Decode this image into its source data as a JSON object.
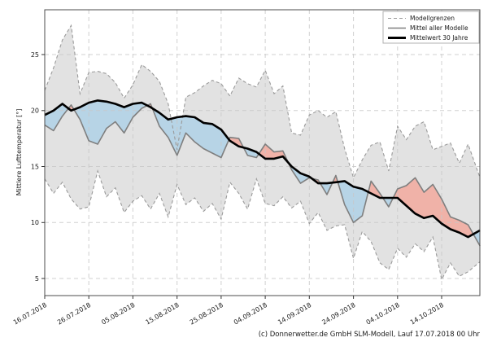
{
  "figure": {
    "background": "#ffffff",
    "caption": "(c) Donnerwetter.de GmbH SLM-Modell, Lauf 17.07.2018 00 Uhr"
  },
  "chart_data": {
    "type": "line",
    "title": "",
    "xlabel": "",
    "ylabel": "Mittlere Lufttemperatur [°]",
    "ylim": [
      3.5,
      29.0
    ],
    "yticks": [
      5,
      10,
      15,
      20,
      25
    ],
    "xtick_days": [
      0,
      10,
      20,
      30,
      40,
      50,
      60,
      70,
      80,
      90
    ],
    "xtick_labels": [
      "16.07.2018",
      "26.07.2018",
      "05.08.2018",
      "15.08.2018",
      "25.08.2018",
      "04.09.2018",
      "14.09.2018",
      "24.09.2018",
      "04.10.2018",
      "14.10.2018"
    ],
    "x_start_date": "16.07.2018",
    "grid": true,
    "x_days": [
      0,
      2,
      4,
      6,
      8,
      10,
      12,
      14,
      16,
      18,
      20,
      22,
      24,
      26,
      28,
      30,
      32,
      34,
      36,
      38,
      40,
      42,
      44,
      46,
      48,
      50,
      52,
      54,
      56,
      58,
      60,
      62,
      64,
      66,
      68,
      70,
      72,
      74,
      76,
      78,
      80,
      82,
      84,
      86,
      88,
      90,
      92,
      94,
      96,
      98.7
    ],
    "series": [
      {
        "name": "Modellgrenzen (obere Grenze)",
        "role": "upper_bound",
        "values": [
          21.8,
          23.8,
          26.3,
          27.6,
          21.5,
          23.4,
          23.5,
          23.3,
          22.5,
          21.1,
          22.3,
          24.1,
          23.5,
          22.6,
          20.6,
          16.5,
          21.2,
          21.6,
          22.2,
          22.7,
          22.4,
          21.3,
          22.9,
          22.4,
          22.1,
          23.6,
          21.5,
          22.2,
          18.0,
          17.8,
          19.6,
          20.0,
          19.4,
          19.9,
          16.6,
          14.0,
          15.6,
          16.9,
          17.2,
          14.6,
          18.6,
          17.4,
          18.6,
          19.0,
          16.5,
          16.8,
          17.1,
          15.3,
          17.0,
          14.0
        ]
      },
      {
        "name": "Modellgrenzen (untere Grenze)",
        "role": "lower_bound",
        "values": [
          13.9,
          12.6,
          13.6,
          12.1,
          11.2,
          11.4,
          14.6,
          12.3,
          13.1,
          10.9,
          11.9,
          12.4,
          11.2,
          12.6,
          10.5,
          13.4,
          11.6,
          12.2,
          11.0,
          11.7,
          10.3,
          13.6,
          12.6,
          11.2,
          13.9,
          11.7,
          11.5,
          12.3,
          11.3,
          11.9,
          9.9,
          10.9,
          9.3,
          9.7,
          9.8,
          6.8,
          9.2,
          8.3,
          6.4,
          5.8,
          7.7,
          6.9,
          8.1,
          7.4,
          8.7,
          4.9,
          6.4,
          5.2,
          5.6,
          6.5
        ]
      },
      {
        "name": "Mittel aller Modelle",
        "role": "model_mean",
        "values": [
          18.7,
          18.2,
          19.5,
          20.5,
          19.2,
          17.3,
          17.0,
          18.4,
          19.0,
          18.0,
          19.4,
          20.2,
          20.6,
          18.6,
          17.6,
          16.0,
          18.0,
          17.2,
          16.6,
          16.2,
          15.8,
          17.6,
          17.5,
          16.0,
          15.8,
          17.0,
          16.3,
          16.4,
          14.7,
          13.5,
          14.0,
          13.8,
          12.5,
          14.2,
          11.6,
          10.0,
          10.6,
          13.7,
          12.6,
          11.4,
          13.0,
          13.3,
          14.0,
          12.7,
          13.4,
          12.1,
          10.5,
          10.2,
          9.8,
          7.9
        ]
      },
      {
        "name": "Mittelwert 30 Jahre",
        "role": "climate_mean",
        "values": [
          19.6,
          20.0,
          20.6,
          20.0,
          20.3,
          20.7,
          20.9,
          20.8,
          20.6,
          20.3,
          20.6,
          20.7,
          20.3,
          19.8,
          19.2,
          19.4,
          19.5,
          19.4,
          18.9,
          18.8,
          18.3,
          17.3,
          16.8,
          16.6,
          16.3,
          15.7,
          15.7,
          15.9,
          15.0,
          14.4,
          14.1,
          13.5,
          13.5,
          13.6,
          13.7,
          13.2,
          13.0,
          12.6,
          12.2,
          12.2,
          12.2,
          11.5,
          10.8,
          10.4,
          10.6,
          9.9,
          9.4,
          9.1,
          8.7,
          9.3
        ]
      }
    ],
    "legend": {
      "position": "top-right",
      "entries": [
        "Modellgrenzen",
        "Mittel aller Modelle",
        "Mittelwert 30 Jahre"
      ]
    },
    "colors": {
      "band": "#e2e2e2",
      "bound_line": "#9a9a9a",
      "model_mean": "#7f7f7f",
      "climate_mean": "#000000",
      "above_fill": "#f0b2a8",
      "below_fill": "#b7d4e6",
      "grid": "#c8c8c8",
      "border": "#4d4d4d"
    },
    "caption": "(c) Donnerwetter.de GmbH SLM-Modell, Lauf 17.07.2018 00 Uhr"
  }
}
